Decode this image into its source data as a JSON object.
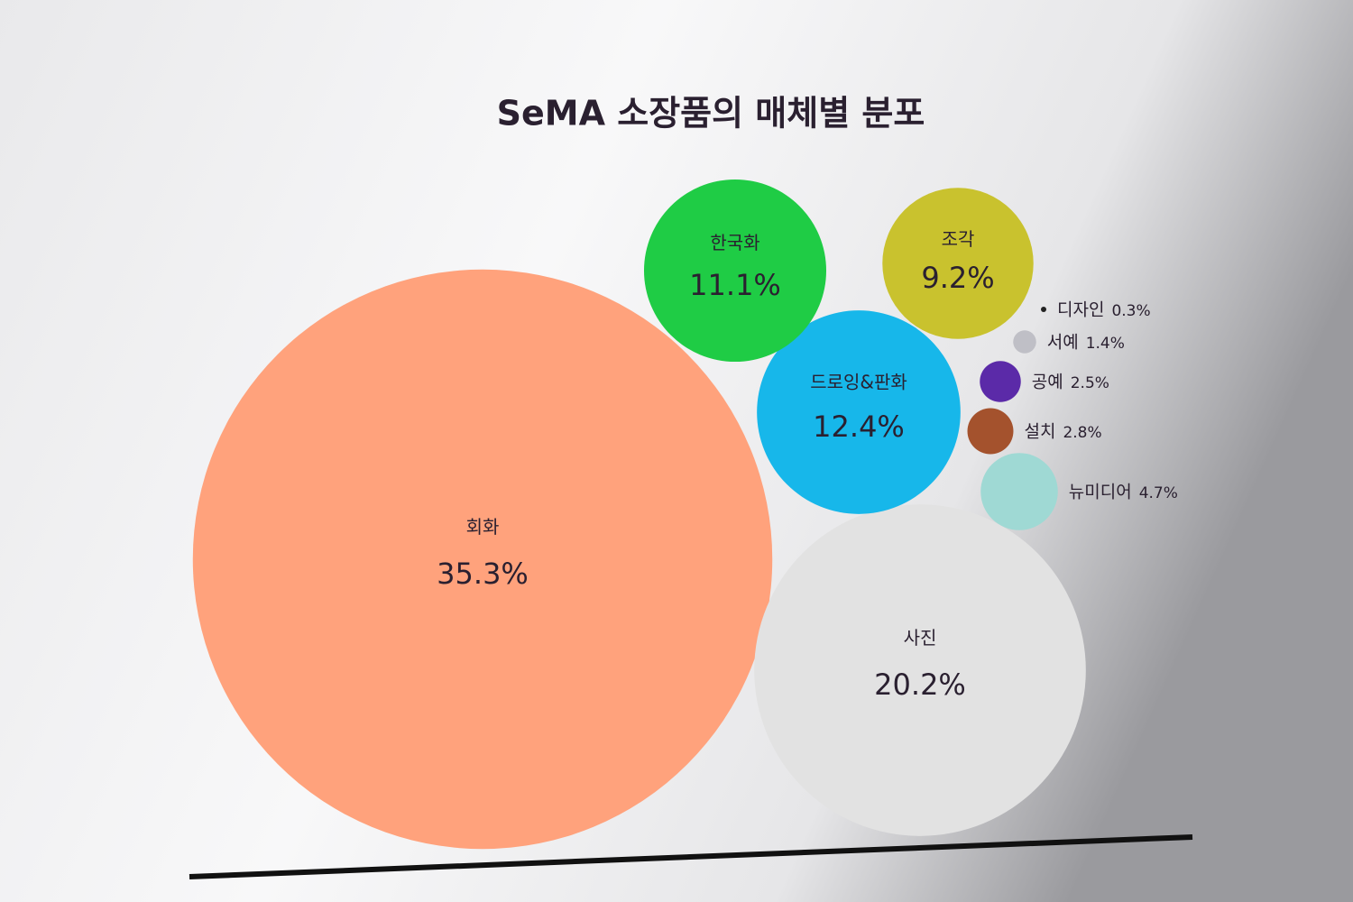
{
  "chart_data": {
    "type": "bubble",
    "title": "SeMA 소장품의 매체별 분포",
    "categories": [
      "회화",
      "사진",
      "드로잉&판화",
      "한국화",
      "조각",
      "뉴미디어",
      "설치",
      "공예",
      "서예",
      "디자인"
    ],
    "values": [
      35.3,
      20.2,
      12.4,
      11.1,
      9.2,
      4.7,
      2.8,
      2.5,
      1.4,
      0.3
    ],
    "value_labels": [
      "35.3%",
      "20.2%",
      "12.4%",
      "11.1%",
      "9.2%",
      "4.7%",
      "2.8%",
      "2.5%",
      "1.4%",
      "0.3%"
    ],
    "colors": [
      "#ffa27c",
      "#e2e2e2",
      "#17b7ea",
      "#1fcc45",
      "#c9c22e",
      "#9fd9d4",
      "#a4522d",
      "#5b2aa8",
      "#bfbfc6",
      "#222222"
    ]
  }
}
